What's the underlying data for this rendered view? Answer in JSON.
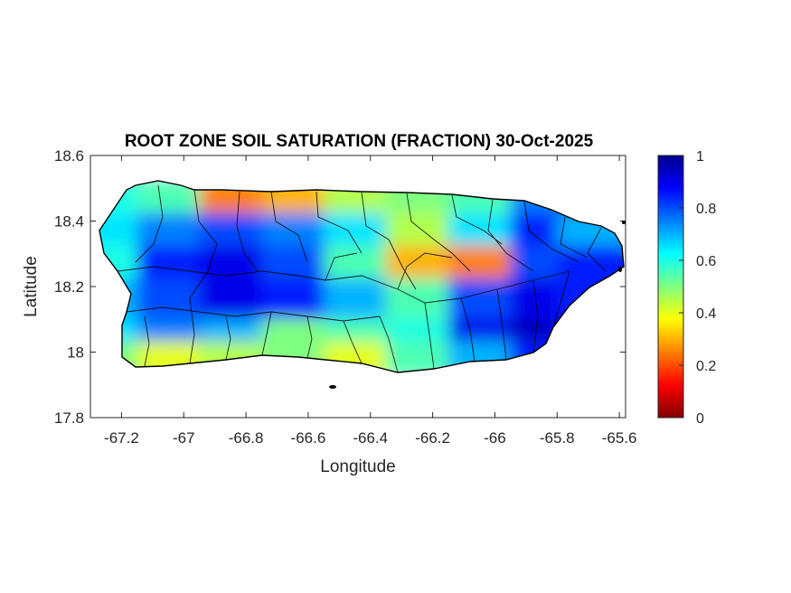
{
  "title": "ROOT ZONE SOIL SATURATION (FRACTION) 30-Oct-2025",
  "x_axis": {
    "label": "Longitude",
    "range": [
      -67.3,
      -65.58
    ],
    "ticks": [
      "-67.2",
      "-67",
      "-66.8",
      "-66.6",
      "-66.4",
      "-66.2",
      "-66",
      "-65.8",
      "-65.6"
    ]
  },
  "y_axis": {
    "label": "Latitude",
    "range": [
      17.8,
      18.6
    ],
    "ticks": [
      "18.6",
      "18.4",
      "18.2",
      "18",
      "17.8"
    ]
  },
  "colorbar": {
    "colormap": "jet",
    "range": [
      0,
      1
    ],
    "ticks": [
      "1",
      "0.8",
      "0.6",
      "0.4",
      "0.2",
      "0"
    ]
  },
  "chart_data": {
    "type": "heatmap",
    "title": "ROOT ZONE SOIL SATURATION (FRACTION) 30-Oct-2025",
    "xlabel": "Longitude",
    "ylabel": "Latitude",
    "xlim": [
      -67.3,
      -65.58
    ],
    "ylim": [
      17.8,
      18.6
    ],
    "clim": [
      0,
      1
    ],
    "colormap": "jet",
    "legend_placement": "right",
    "x": [
      -67.2,
      -67.0,
      -66.8,
      -66.6,
      -66.4,
      -66.2,
      -66.0,
      -65.8,
      -65.65
    ],
    "y": [
      18.45,
      18.35,
      18.25,
      18.15,
      18.05,
      17.98
    ],
    "values": [
      [
        0.6,
        0.55,
        0.25,
        0.3,
        0.45,
        0.5,
        0.55,
        0.75,
        0.8
      ],
      [
        0.65,
        0.75,
        0.8,
        0.75,
        0.65,
        0.45,
        0.65,
        0.85,
        0.7
      ],
      [
        0.6,
        0.85,
        0.9,
        0.8,
        0.55,
        0.3,
        0.25,
        0.8,
        0.85
      ],
      [
        0.7,
        0.8,
        0.9,
        0.85,
        0.7,
        0.55,
        0.8,
        0.9,
        0.85
      ],
      [
        0.65,
        0.75,
        0.7,
        0.5,
        0.55,
        0.6,
        0.9,
        0.95,
        0.85
      ],
      [
        0.5,
        0.4,
        0.45,
        0.5,
        0.4,
        0.55,
        0.7,
        0.85,
        null
      ]
    ]
  }
}
